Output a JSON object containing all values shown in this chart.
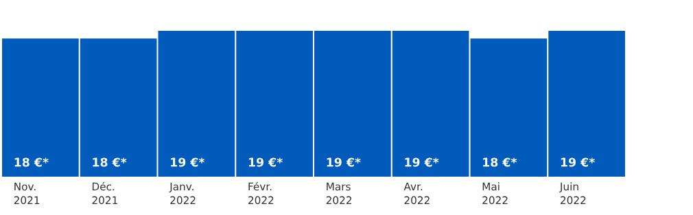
{
  "chart_data": {
    "type": "bar",
    "categories": [
      "Nov.\n2021",
      "Déc.\n2021",
      "Janv.\n2022",
      "Févr.\n2022",
      "Mars\n2022",
      "Avr.\n2022",
      "Mai\n2022",
      "Juin\n2022"
    ],
    "values": [
      18,
      18,
      19,
      19,
      19,
      19,
      18,
      19
    ],
    "value_labels": [
      "18 €*",
      "18 €*",
      "19 €*",
      "19 €*",
      "19 €*",
      "19 €*",
      "18 €*",
      "19 €*"
    ],
    "color": "#005bbb"
  }
}
